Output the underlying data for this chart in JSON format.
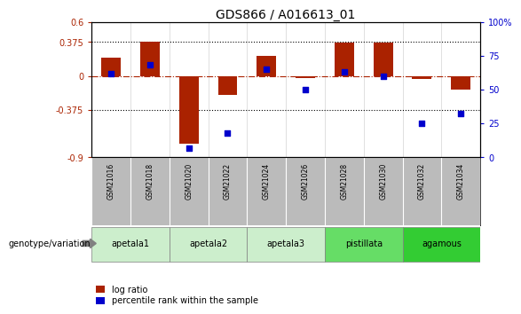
{
  "title": "GDS866 / A016613_01",
  "samples": [
    "GSM21016",
    "GSM21018",
    "GSM21020",
    "GSM21022",
    "GSM21024",
    "GSM21026",
    "GSM21028",
    "GSM21030",
    "GSM21032",
    "GSM21034"
  ],
  "log_ratio": [
    0.2,
    0.38,
    -0.75,
    -0.21,
    0.22,
    -0.02,
    0.37,
    0.37,
    -0.03,
    -0.15
  ],
  "percentile_rank": [
    62,
    68,
    7,
    18,
    65,
    50,
    63,
    60,
    25,
    32
  ],
  "group_info": [
    {
      "name": "apetala1",
      "start": 0,
      "end": 1,
      "color": "#cceecc"
    },
    {
      "name": "apetala2",
      "start": 2,
      "end": 3,
      "color": "#cceecc"
    },
    {
      "name": "apetala3",
      "start": 4,
      "end": 5,
      "color": "#cceecc"
    },
    {
      "name": "pistillata",
      "start": 6,
      "end": 7,
      "color": "#66dd66"
    },
    {
      "name": "agamous",
      "start": 8,
      "end": 9,
      "color": "#33cc33"
    }
  ],
  "ylim_left": [
    -0.9,
    0.6
  ],
  "ylim_right": [
    0,
    100
  ],
  "yticks_left": [
    -0.9,
    -0.375,
    0,
    0.375,
    0.6
  ],
  "ytick_labels_left": [
    "-0.9",
    "-0.375",
    "0",
    "0.375",
    "0.6"
  ],
  "yticks_right": [
    0,
    25,
    50,
    75,
    100
  ],
  "ytick_labels_right": [
    "0",
    "25",
    "50",
    "75",
    "100%"
  ],
  "hlines": [
    0.375,
    -0.375
  ],
  "zero_line_y": 0,
  "bar_color": "#aa2200",
  "dot_color": "#0000cc",
  "bar_width": 0.5,
  "dot_size": 22,
  "sample_bg_color": "#bbbbbb",
  "legend_bar_label": "log ratio",
  "legend_dot_label": "percentile rank within the sample",
  "genotype_label": "genotype/variation"
}
